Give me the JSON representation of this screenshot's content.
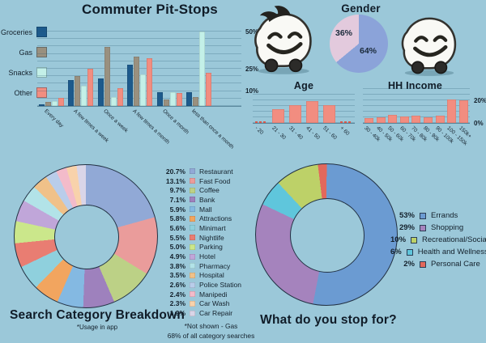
{
  "page": {
    "background": "#9bc8d9",
    "text_color": "#16222e"
  },
  "chart_data": [
    {
      "id": "pitstops",
      "type": "bar",
      "title": "Commuter Pit-Stops",
      "categories": [
        "Every day",
        "A few times a week",
        "Once a week",
        "A few times a month",
        "Once a month",
        "less than once a month"
      ],
      "series": [
        {
          "name": "Groceries",
          "color": "#1d5a8c",
          "values": [
            1,
            17.5,
            18.5,
            27.5,
            9.5,
            9.5
          ]
        },
        {
          "name": "Gas",
          "color": "#99907f",
          "values": [
            2.5,
            20,
            39.5,
            33,
            4.5,
            6
          ]
        },
        {
          "name": "Snacks",
          "color": "#c3f0e8",
          "values": [
            3.5,
            13.5,
            6,
            21,
            9,
            50
          ]
        },
        {
          "name": "Other",
          "color": "#f28d80",
          "values": [
            5.5,
            25,
            12,
            32,
            8.5,
            22.5
          ]
        }
      ],
      "ylim": [
        0,
        50
      ],
      "grid_step": 5,
      "grid": true,
      "legend_position": "left",
      "y_ticks": [
        {
          "value": 50,
          "label": "50%"
        },
        {
          "value": 25,
          "label": "25%"
        },
        {
          "value": 10,
          "label": "10%"
        }
      ]
    },
    {
      "id": "gender",
      "type": "pie",
      "title": "Gender",
      "start_angle": 0,
      "slices": [
        {
          "label": "Male",
          "pct": 64,
          "pct_label": "64%",
          "color": "#8ba3d9"
        },
        {
          "label": "Female",
          "pct": 36,
          "pct_label": "36%",
          "color": "#e3cadd"
        }
      ],
      "icons": [
        "waze-female-icon",
        "waze-male-icon"
      ]
    },
    {
      "id": "age",
      "type": "bar",
      "title": "Age",
      "categories": [
        "- 20",
        "21 - 30",
        "31 - 40",
        "41 - 50",
        "51 - 60",
        "+ 60"
      ],
      "values": [
        1,
        12,
        16,
        19,
        15.5,
        1
      ],
      "color": "#f28d80",
      "ylim": [
        0,
        25
      ],
      "grid_step": 5,
      "grid": true,
      "y_ticks": []
    },
    {
      "id": "income",
      "type": "bar",
      "title": "HH Income",
      "categories": [
        "30 - 40k",
        "40 - 50k",
        "50 - 60k",
        "60 - 70k",
        "70 - 80k",
        "80 - 90k",
        "90 - 100k",
        "100 - 150k",
        "150k+"
      ],
      "values": [
        4,
        5,
        7.5,
        6,
        6.5,
        5,
        6.5,
        21,
        20
      ],
      "color": "#f28d80",
      "ylim": [
        0,
        30
      ],
      "grid_step": 5,
      "grid": true,
      "y_ticks": [
        {
          "value": 20,
          "label": "20%"
        },
        {
          "value": 0,
          "label": "0%"
        }
      ]
    },
    {
      "id": "search",
      "type": "donut",
      "title": "Search Category Breakdown",
      "subtitle": "*Usage in app",
      "footnotes": [
        "*Not shown - Gas",
        "68% of all category searches"
      ],
      "start_angle": 0,
      "legend_position": "right",
      "slices": [
        {
          "label": "Restaurant",
          "pct": 20.7,
          "pct_label": "20.7%",
          "color": "#91a9d6"
        },
        {
          "label": "Fast Food",
          "pct": 13.1,
          "pct_label": "13.1%",
          "color": "#ea9c9b"
        },
        {
          "label": "Coffee",
          "pct": 9.7,
          "pct_label": "9.7%",
          "color": "#bcd186"
        },
        {
          "label": "Bank",
          "pct": 7.1,
          "pct_label": "7.1%",
          "color": "#9e81bd"
        },
        {
          "label": "Mall",
          "pct": 5.9,
          "pct_label": "5.9%",
          "color": "#84b9e2"
        },
        {
          "label": "Attractions",
          "pct": 5.8,
          "pct_label": "5.8%",
          "color": "#f2a55f"
        },
        {
          "label": "Minimart",
          "pct": 5.6,
          "pct_label": "5.6%",
          "color": "#8fd0dd"
        },
        {
          "label": "Nightlife",
          "pct": 5.5,
          "pct_label": "5.5%",
          "color": "#e97d72"
        },
        {
          "label": "Parking",
          "pct": 5.0,
          "pct_label": "5.0%",
          "color": "#cbe78b"
        },
        {
          "label": "Hotel",
          "pct": 4.9,
          "pct_label": "4.9%",
          "color": "#c0a6d9"
        },
        {
          "label": "Pharmacy",
          "pct": 3.8,
          "pct_label": "3.8%",
          "color": "#b2e3e8"
        },
        {
          "label": "Hospital",
          "pct": 3.5,
          "pct_label": "3.5%",
          "color": "#f0c189"
        },
        {
          "label": "Police Station",
          "pct": 2.6,
          "pct_label": "2.6%",
          "color": "#b9cdea"
        },
        {
          "label": "Manipedi",
          "pct": 2.4,
          "pct_label": "2.4%",
          "color": "#f3bbca"
        },
        {
          "label": "Car Wash",
          "pct": 2.3,
          "pct_label": "2.3%",
          "color": "#f8d2ab"
        },
        {
          "label": "Car Repair",
          "pct": 1.9,
          "pct_label": "1.9%",
          "color": "#d9d5e8"
        }
      ]
    },
    {
      "id": "stops",
      "type": "donut",
      "title": "What do you stop for?",
      "start_angle": -7,
      "draw_order": [
        4,
        0,
        1,
        3,
        2
      ],
      "legend_position": "right",
      "slices": [
        {
          "label": "Errands",
          "pct": 53,
          "pct_label": "53%",
          "color": "#6b9bd2"
        },
        {
          "label": "Shopping",
          "pct": 29,
          "pct_label": "29%",
          "color": "#a583bd"
        },
        {
          "label": "Recreational/Social",
          "pct": 10,
          "pct_label": "10%",
          "color": "#bdd168"
        },
        {
          "label": "Health and Wellness",
          "pct": 6,
          "pct_label": "6%",
          "color": "#5fc6dc"
        },
        {
          "label": "Personal Care",
          "pct": 2,
          "pct_label": "2%",
          "color": "#e2685c"
        }
      ]
    }
  ]
}
